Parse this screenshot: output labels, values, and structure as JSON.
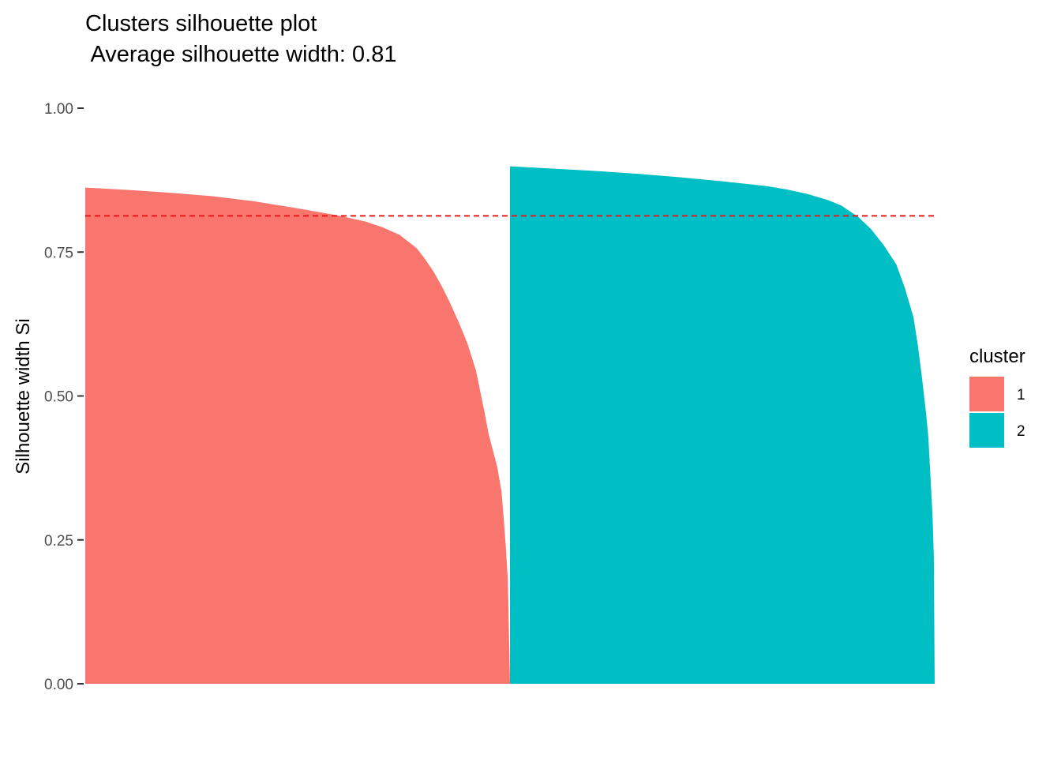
{
  "chart_data": {
    "type": "area",
    "title": "Clusters silhouette plot",
    "subtitle": " Average silhouette width: 0.81",
    "xlabel": "",
    "ylabel": "Silhouette width Si",
    "ylim": [
      0,
      1
    ],
    "y_ticks": [
      "0.00",
      "0.25",
      "0.50",
      "0.75",
      "1.00"
    ],
    "y_tick_values": [
      0,
      0.25,
      0.5,
      0.75,
      1.0
    ],
    "grid": false,
    "legend": {
      "title": "cluster",
      "position": "right",
      "entries": [
        "1",
        "2"
      ]
    },
    "average_line": {
      "value": 0.813,
      "color": "#e41a1c",
      "style": "dashed"
    },
    "x_domain": [
      0,
      2000
    ],
    "series": [
      {
        "name": "1",
        "color": "#F8766D",
        "x_range": [
          0,
          1000
        ],
        "profile": [
          [
            0.0,
            0.862
          ],
          [
            0.1,
            0.858
          ],
          [
            0.2,
            0.853
          ],
          [
            0.3,
            0.847
          ],
          [
            0.4,
            0.838
          ],
          [
            0.5,
            0.826
          ],
          [
            0.6,
            0.813
          ],
          [
            0.66,
            0.803
          ],
          [
            0.7,
            0.793
          ],
          [
            0.74,
            0.78
          ],
          [
            0.78,
            0.757
          ],
          [
            0.8,
            0.738
          ],
          [
            0.82,
            0.716
          ],
          [
            0.84,
            0.69
          ],
          [
            0.86,
            0.66
          ],
          [
            0.88,
            0.627
          ],
          [
            0.9,
            0.591
          ],
          [
            0.92,
            0.544
          ],
          [
            0.94,
            0.472
          ],
          [
            0.95,
            0.433
          ],
          [
            0.96,
            0.405
          ],
          [
            0.97,
            0.377
          ],
          [
            0.98,
            0.334
          ],
          [
            0.985,
            0.29
          ],
          [
            0.99,
            0.24
          ],
          [
            0.995,
            0.18
          ],
          [
            1.0,
            0.0
          ]
        ]
      },
      {
        "name": "2",
        "color": "#00BFC4",
        "x_range": [
          1000,
          2000
        ],
        "profile": [
          [
            0.0,
            0.899
          ],
          [
            0.1,
            0.895
          ],
          [
            0.2,
            0.891
          ],
          [
            0.3,
            0.886
          ],
          [
            0.4,
            0.88
          ],
          [
            0.5,
            0.873
          ],
          [
            0.6,
            0.865
          ],
          [
            0.65,
            0.859
          ],
          [
            0.7,
            0.851
          ],
          [
            0.75,
            0.84
          ],
          [
            0.78,
            0.831
          ],
          [
            0.82,
            0.811
          ],
          [
            0.85,
            0.79
          ],
          [
            0.88,
            0.762
          ],
          [
            0.91,
            0.728
          ],
          [
            0.93,
            0.687
          ],
          [
            0.95,
            0.637
          ],
          [
            0.96,
            0.59
          ],
          [
            0.97,
            0.532
          ],
          [
            0.98,
            0.468
          ],
          [
            0.985,
            0.429
          ],
          [
            0.99,
            0.361
          ],
          [
            0.995,
            0.29
          ],
          [
            0.998,
            0.22
          ],
          [
            1.0,
            0.0
          ]
        ]
      }
    ]
  }
}
